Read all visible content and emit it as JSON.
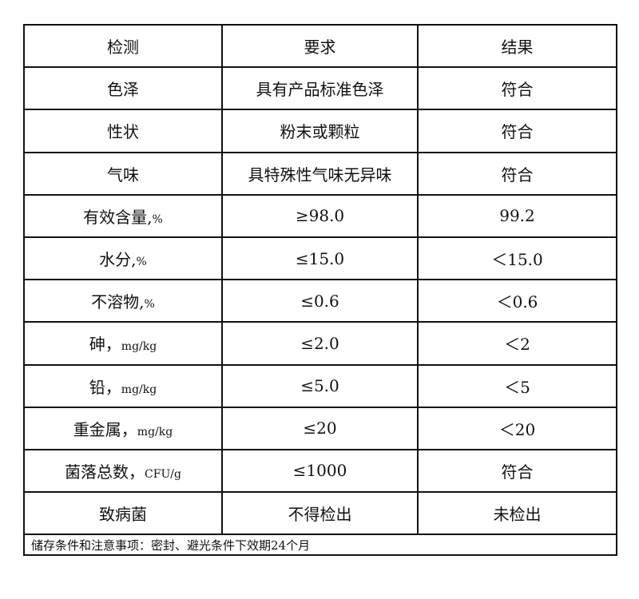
{
  "headers": [
    "检测",
    "要求",
    "结果"
  ],
  "rows": [
    {
      "item": "色泽",
      "requirement": "具有产品标准色泽",
      "result": "符合"
    },
    {
      "item": "性状",
      "requirement": "粉末或颗粒",
      "result": "符合"
    },
    {
      "item": "气味",
      "requirement": "具特殊性气味无异味",
      "result": "符合"
    },
    {
      "item": "有效含量,",
      "unit": "%",
      "requirement": "≥98.0",
      "result": "99.2"
    },
    {
      "item": "水分,",
      "unit": "%",
      "requirement": "≤15.0",
      "result": "＜15.0"
    },
    {
      "item": "不溶物,",
      "unit": "%",
      "requirement": "≤0.6",
      "result": "＜0.6"
    },
    {
      "item": "砷，",
      "unit": "mg/kg",
      "requirement": "≤2.0",
      "result": "＜2"
    },
    {
      "item": "铅，",
      "unit": "mg/kg",
      "requirement": "≤5.0",
      "result": "＜5"
    },
    {
      "item": "重金属，",
      "unit": "mg/kg",
      "requirement": "≤20",
      "result": "＜20"
    },
    {
      "item": "菌落总数，",
      "unit": "CFU/g",
      "requirement": "≤1000",
      "result": "符合"
    },
    {
      "item": "致病菌",
      "requirement": "不得检出",
      "result": "未检出"
    }
  ],
  "footer": "储存条件和注意事项：密封、避光条件下效期24个月"
}
